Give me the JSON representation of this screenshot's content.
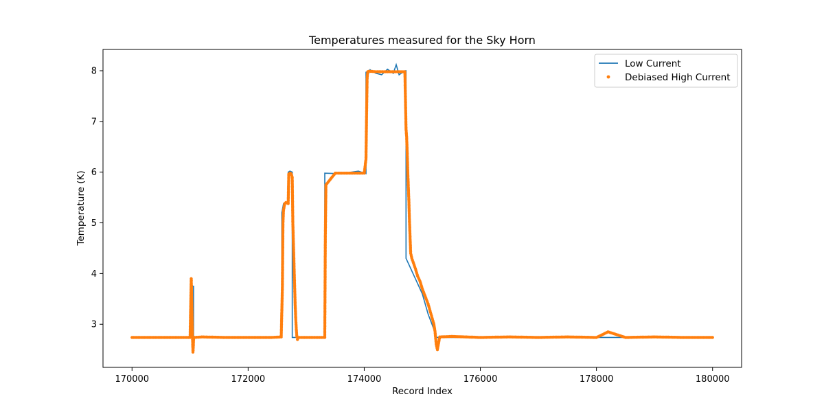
{
  "chart_data": {
    "type": "line",
    "title": "Temperatures measured for the Sky Horn",
    "xlabel": "Record Index",
    "ylabel": "Temperature (K)",
    "xlim": [
      169500,
      180500
    ],
    "ylim": [
      2.15,
      8.42
    ],
    "xticks": [
      170000,
      172000,
      174000,
      176000,
      178000,
      180000
    ],
    "xtick_labels": [
      "170000",
      "172000",
      "174000",
      "176000",
      "178000",
      "180000"
    ],
    "yticks": [
      3,
      4,
      5,
      6,
      7,
      8
    ],
    "ytick_labels": [
      "3",
      "4",
      "5",
      "6",
      "7",
      "8"
    ],
    "grid": false,
    "legend_position": "top-right",
    "series": [
      {
        "name": "Low Current",
        "kind": "line",
        "color": "#1f77b4",
        "x": [
          170000,
          171000,
          171020,
          171020,
          171060,
          171060,
          172580,
          172580,
          172610,
          172650,
          172690,
          172690,
          172720,
          172760,
          172760,
          173320,
          173320,
          173600,
          173900,
          174030,
          174030,
          174060,
          174100,
          174200,
          174300,
          174400,
          174500,
          174550,
          174600,
          174700,
          174720,
          174720,
          174760,
          174800,
          174880,
          175000,
          175100,
          175200,
          175250,
          175300,
          176000,
          177000,
          178000,
          179000,
          180000
        ],
        "y": [
          2.74,
          2.74,
          2.74,
          3.75,
          3.75,
          2.74,
          2.74,
          5.2,
          5.38,
          5.4,
          5.4,
          6.0,
          6.02,
          6.0,
          2.74,
          2.74,
          5.98,
          5.97,
          6.02,
          5.97,
          7.98,
          7.9,
          8.02,
          7.95,
          7.92,
          8.03,
          7.95,
          8.12,
          7.92,
          8.0,
          8.0,
          4.3,
          4.2,
          4.1,
          3.9,
          3.6,
          3.2,
          2.9,
          2.74,
          2.74,
          2.74,
          2.74,
          2.74,
          2.74,
          2.74
        ]
      },
      {
        "name": "Debiased High Current",
        "kind": "scatter",
        "color": "#ff7f0e",
        "x": [
          170000,
          170400,
          170800,
          171000,
          171020,
          171025,
          171030,
          171035,
          171040,
          171045,
          171050,
          171055,
          171060,
          171070,
          171080,
          171200,
          171600,
          172000,
          172400,
          172570,
          172590,
          172600,
          172610,
          172630,
          172650,
          172670,
          172690,
          172700,
          172720,
          172740,
          172760,
          172770,
          172780,
          172790,
          172800,
          172810,
          172820,
          172830,
          172840,
          172850,
          172860,
          173000,
          173200,
          173320,
          173330,
          173340,
          173500,
          173800,
          174000,
          174030,
          174040,
          174050,
          174060,
          174080,
          174200,
          174400,
          174600,
          174700,
          174720,
          174730,
          174740,
          174750,
          174760,
          174770,
          174780,
          174790,
          174800,
          174820,
          174850,
          174880,
          174920,
          174960,
          175000,
          175050,
          175100,
          175150,
          175200,
          175220,
          175240,
          175260,
          175300,
          175500,
          176000,
          176500,
          177000,
          177500,
          178000,
          178200,
          178500,
          179000,
          179500,
          180000
        ],
        "y": [
          2.74,
          2.74,
          2.74,
          2.74,
          3.9,
          3.7,
          3.4,
          3.1,
          2.8,
          2.6,
          2.45,
          2.55,
          2.7,
          2.74,
          2.74,
          2.75,
          2.74,
          2.74,
          2.74,
          2.75,
          3.72,
          5.0,
          5.25,
          5.38,
          5.4,
          5.39,
          5.38,
          5.96,
          5.98,
          5.97,
          5.9,
          5.0,
          4.6,
          4.2,
          3.8,
          3.4,
          3.1,
          2.9,
          2.75,
          2.7,
          2.74,
          2.74,
          2.74,
          2.74,
          4.73,
          5.75,
          5.98,
          5.98,
          5.98,
          6.26,
          7.1,
          7.85,
          7.98,
          7.99,
          7.98,
          7.98,
          7.98,
          7.98,
          6.85,
          6.7,
          6.4,
          6.0,
          5.7,
          5.4,
          5.0,
          4.7,
          4.4,
          4.3,
          4.2,
          4.1,
          3.95,
          3.85,
          3.7,
          3.55,
          3.4,
          3.2,
          3.0,
          2.85,
          2.6,
          2.5,
          2.75,
          2.76,
          2.74,
          2.75,
          2.74,
          2.75,
          2.74,
          2.85,
          2.74,
          2.75,
          2.74,
          2.74
        ]
      }
    ]
  }
}
